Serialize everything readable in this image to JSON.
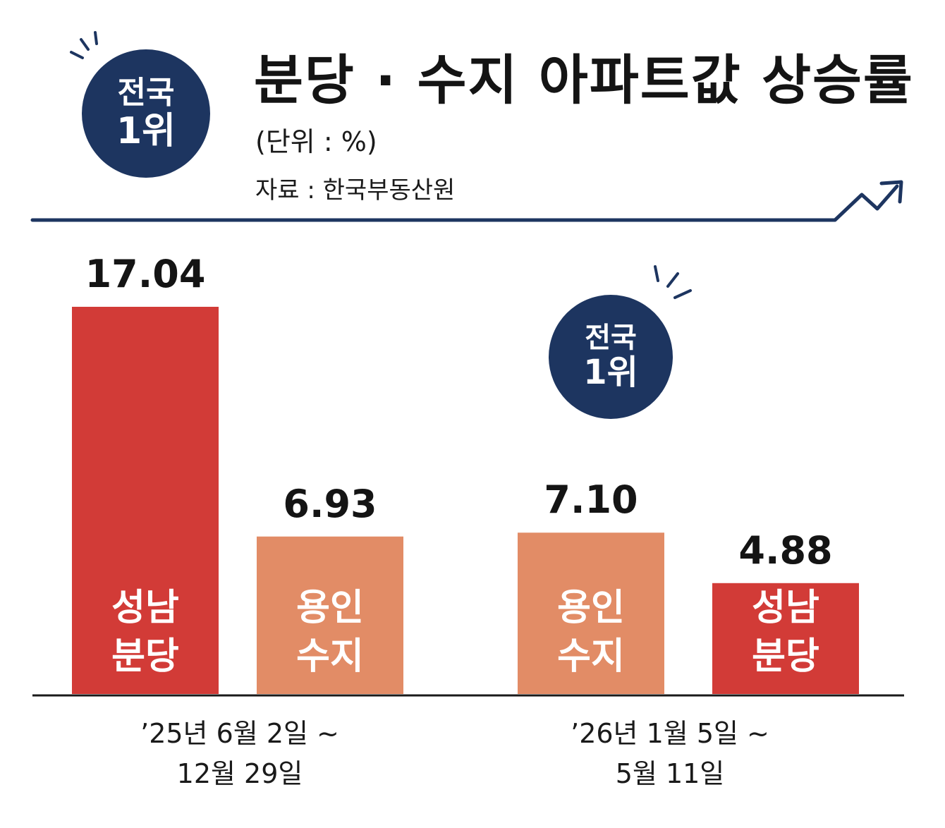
{
  "colors": {
    "navy": "#1d3560",
    "seongnam_bundang": "#d23b37",
    "yongin_suji": "#e28c66"
  },
  "badge": {
    "line1": "전국",
    "line2": "1위"
  },
  "chart_data": {
    "type": "bar",
    "title": "분당 · 수지 아파트값 상승률",
    "subtitle": "(단위 : %)",
    "source": "자료 : 한국부동산원",
    "ylim": [
      0,
      17.04
    ],
    "groups": [
      {
        "period": [
          "’25년 6월 2일 ~",
          "12월 29일"
        ],
        "bars": [
          {
            "region": [
              "성남",
              "분당"
            ],
            "value": 17.04,
            "value_label": "17.04",
            "color": "#d23b37"
          },
          {
            "region": [
              "용인",
              "수지"
            ],
            "value": 6.93,
            "value_label": "6.93",
            "color": "#e28c66"
          }
        ],
        "badge": "전국 1위 (성남 분당)"
      },
      {
        "period": [
          "’26년 1월 5일 ~",
          "5월 11일"
        ],
        "bars": [
          {
            "region": [
              "용인",
              "수지"
            ],
            "value": 7.1,
            "value_label": "7.10",
            "color": "#e28c66"
          },
          {
            "region": [
              "성남",
              "분당"
            ],
            "value": 4.88,
            "value_label": "4.88",
            "color": "#d23b37"
          }
        ],
        "badge": "전국 1위 (용인 수지)"
      }
    ],
    "grid": false,
    "legend": "none"
  }
}
